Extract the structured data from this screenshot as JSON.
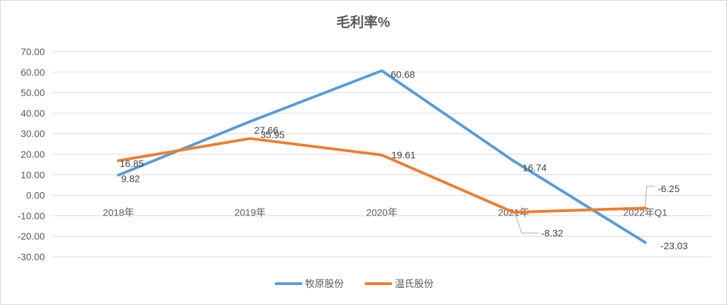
{
  "chart_data": {
    "type": "line",
    "title": "毛利率%",
    "categories": [
      "2018年",
      "2019年",
      "2020年",
      "2021年",
      "2022年Q1"
    ],
    "series": [
      {
        "name": "牧原股份",
        "color": "#5b9bd5",
        "values": [
          9.82,
          35.95,
          60.68,
          16.74,
          -23.03
        ]
      },
      {
        "name": "温氏股份",
        "color": "#ed7d31",
        "values": [
          16.85,
          27.66,
          19.61,
          -8.32,
          -6.25
        ]
      }
    ],
    "ylim": [
      -30,
      70
    ],
    "ytick_step": 10,
    "ytick_labels": [
      "70.00",
      "60.00",
      "50.00",
      "40.00",
      "30.00",
      "20.00",
      "10.00",
      "0.00",
      "-10.00",
      "-20.00",
      "-30.00"
    ],
    "data_labels": {
      "牧原股份": [
        "9.82",
        "35.95",
        "60.68",
        "16.74",
        "-23.03"
      ],
      "温氏股份": [
        "16.85",
        "27.66",
        "19.61",
        "-8.32",
        "-6.25"
      ]
    },
    "grid": true,
    "legend_position": "bottom",
    "xlabel": "",
    "ylabel": ""
  }
}
